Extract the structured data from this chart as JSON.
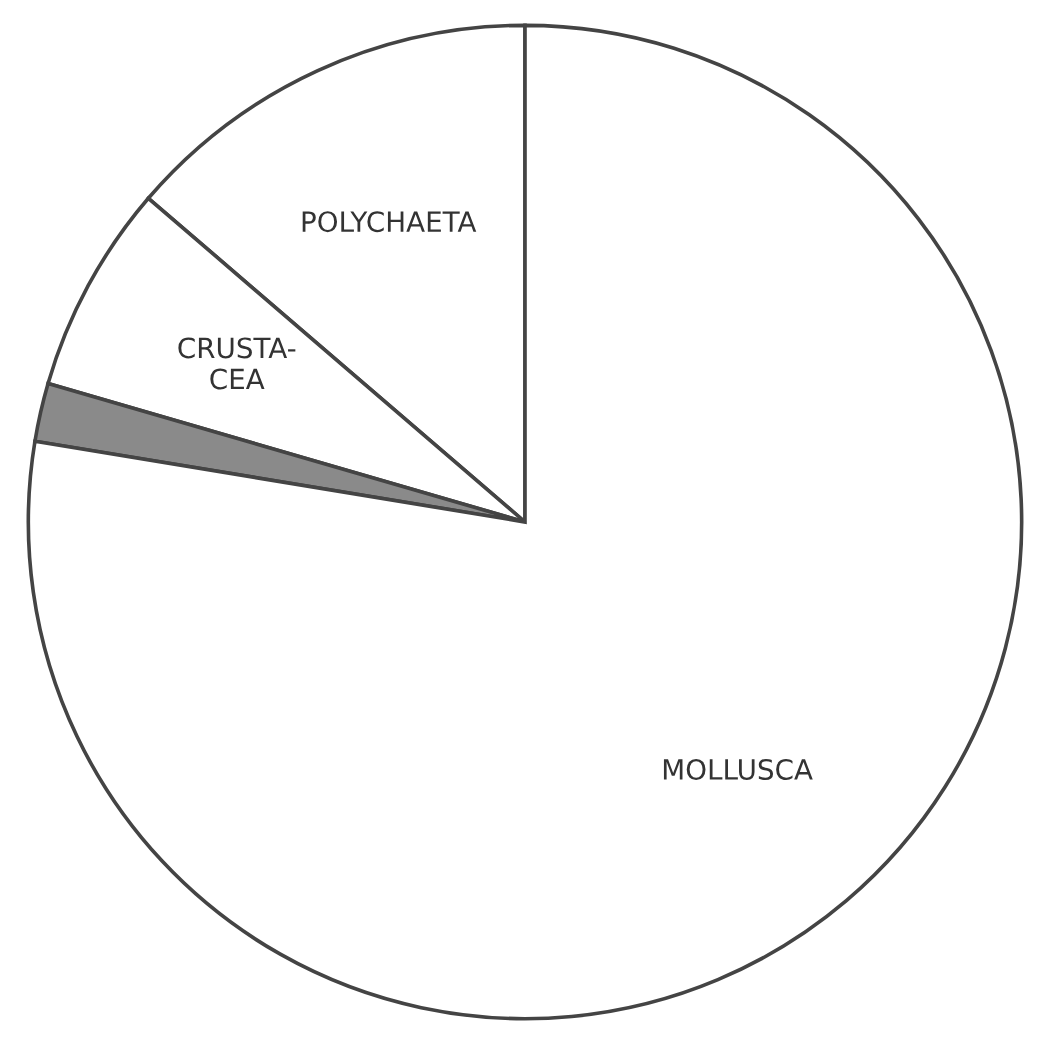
{
  "chart_data": {
    "type": "pie",
    "categories": [
      "POLYCHAETA",
      "CRUSTA-\nCEA",
      null,
      "MOLLUSCA"
    ],
    "values": [
      13.7,
      6.8,
      1.9,
      77.6
    ],
    "colors": [
      "#ffffff",
      "#ffffff",
      "#8a8a8a",
      "#ffffff"
    ]
  }
}
